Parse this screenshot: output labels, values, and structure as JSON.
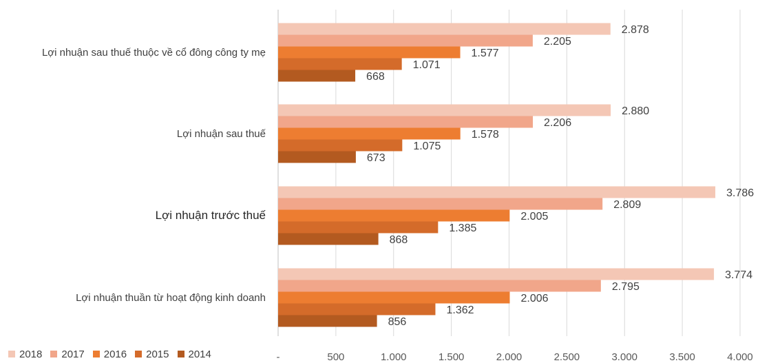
{
  "chart_data": {
    "type": "bar",
    "orientation": "horizontal",
    "categories": [
      "Lợi nhuận sau thuế thuộc về cổ đông công ty mẹ",
      "Lợi nhuận sau thuế",
      "Lợi nhuận trước thuế",
      "Lợi nhuận thuần từ hoạt động kinh doanh"
    ],
    "series": [
      {
        "name": "2018",
        "color": "#F4C7B5",
        "values": [
          2878,
          2880,
          3786,
          3774
        ],
        "labels": [
          "2.878",
          "2.880",
          "3.786",
          "3.774"
        ]
      },
      {
        "name": "2017",
        "color": "#F1A68A",
        "values": [
          2205,
          2206,
          2809,
          2795
        ],
        "labels": [
          "2.205",
          "2.206",
          "2.809",
          "2.795"
        ]
      },
      {
        "name": "2016",
        "color": "#ED7D31",
        "values": [
          1577,
          1578,
          2005,
          2006
        ],
        "labels": [
          "1.577",
          "1.578",
          "2.005",
          "2.006"
        ]
      },
      {
        "name": "2015",
        "color": "#D46B2A",
        "values": [
          1071,
          1075,
          1385,
          1362
        ],
        "labels": [
          "1.071",
          "1.075",
          "1.385",
          "1.362"
        ]
      },
      {
        "name": "2014",
        "color": "#B35A20",
        "values": [
          668,
          673,
          868,
          856
        ],
        "labels": [
          "668",
          "673",
          "868",
          "856"
        ]
      }
    ],
    "xlim": [
      0,
      4000
    ],
    "x_ticks": [
      0,
      500,
      1000,
      1500,
      2000,
      2500,
      3000,
      3500,
      4000
    ],
    "x_tick_labels": [
      "-",
      "500",
      "1.000",
      "1.500",
      "2.000",
      "2.500",
      "3.000",
      "3.500",
      "4.000"
    ],
    "grid": "vertical",
    "legend_position": "bottom-left",
    "title": "",
    "xlabel": "",
    "ylabel": ""
  }
}
